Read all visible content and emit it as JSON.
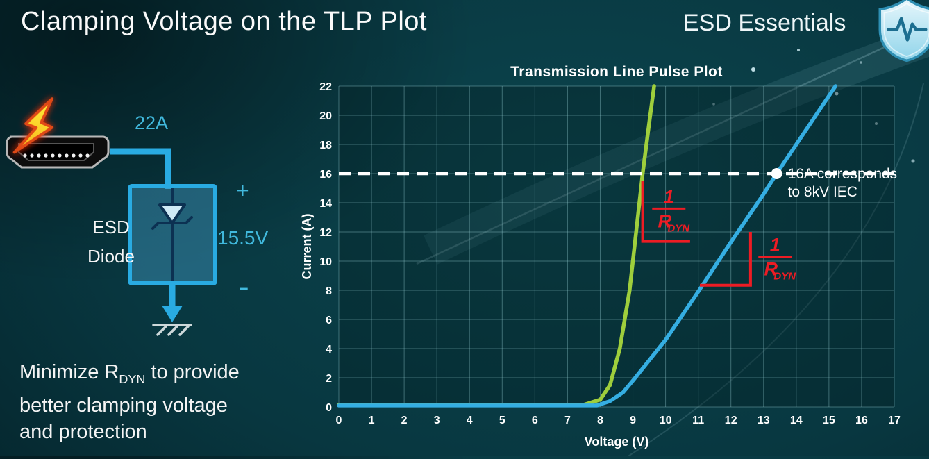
{
  "slide": {
    "title": "Clamping Voltage on the TLP Plot",
    "brand": "ESD Essentials"
  },
  "diagram": {
    "surge_current": "22A",
    "device_line1": "ESD",
    "device_line2": "Diode",
    "polarity_plus": "+",
    "clamping_voltage": "15.5V",
    "polarity_minus": "-"
  },
  "note": {
    "line1_pre": "Minimize R",
    "line1_sub": "DYN",
    "line1_post": " to provide",
    "line2": "better clamping voltage",
    "line3": "and protection"
  },
  "chart_data": {
    "type": "line",
    "title": "Transmission Line Pulse Plot",
    "xlabel": "Voltage (V)",
    "ylabel": "Current (A)",
    "xlim": [
      0,
      17
    ],
    "ylim": [
      0,
      22
    ],
    "x_ticks": [
      0,
      1,
      2,
      3,
      4,
      5,
      6,
      7,
      8,
      9,
      10,
      11,
      12,
      13,
      14,
      15,
      16,
      17
    ],
    "y_ticks": [
      0,
      2,
      4,
      6,
      8,
      10,
      12,
      14,
      16,
      18,
      20,
      22
    ],
    "grid": true,
    "grid_color": "rgba(150,205,210,0.4)",
    "annotation_color": "#ed1c24",
    "series": [
      {
        "name": "low-rdyn-diode-green",
        "color": "#9fce3c",
        "points": [
          [
            0,
            0.15
          ],
          [
            7.5,
            0.15
          ],
          [
            8.0,
            0.5
          ],
          [
            8.3,
            1.5
          ],
          [
            8.6,
            4
          ],
          [
            8.9,
            8
          ],
          [
            9.1,
            12
          ],
          [
            9.3,
            16
          ],
          [
            9.5,
            19.5
          ],
          [
            9.65,
            22
          ]
        ]
      },
      {
        "name": "high-rdyn-diode-blue",
        "color": "#35aee2",
        "points": [
          [
            0,
            0.1
          ],
          [
            7.9,
            0.1
          ],
          [
            8.3,
            0.4
          ],
          [
            8.7,
            1.0
          ],
          [
            9.0,
            1.8
          ],
          [
            9.5,
            3.2
          ],
          [
            10,
            4.6
          ],
          [
            11,
            7.9
          ],
          [
            12,
            11.3
          ],
          [
            13,
            14.6
          ],
          [
            13.4,
            16
          ],
          [
            15.2,
            22
          ]
        ]
      }
    ],
    "reference_line": {
      "y": 16,
      "color": "#ffffff",
      "style": "dashed"
    },
    "marker": {
      "x": 13.4,
      "y": 16,
      "color": "#ffffff",
      "label": [
        "16A corresponds",
        "to 8kV IEC"
      ]
    },
    "annotations": [
      {
        "id": "rdyn-green",
        "fraction": {
          "numerator": "1",
          "denominator_base": "R",
          "denominator_sub": "DYN"
        },
        "bracket": [
          [
            9.3,
            15.5
          ],
          [
            9.3,
            11.35
          ],
          [
            10.75,
            11.35
          ]
        ],
        "label_pos": [
          10.1,
          13.6
        ]
      },
      {
        "id": "rdyn-blue",
        "fraction": {
          "numerator": "1",
          "denominator_base": "R",
          "denominator_sub": "DYN"
        },
        "bracket": [
          [
            11.05,
            8.35
          ],
          [
            12.6,
            8.35
          ],
          [
            12.6,
            12.0
          ]
        ],
        "label_pos": [
          13.35,
          10.3
        ]
      }
    ]
  }
}
